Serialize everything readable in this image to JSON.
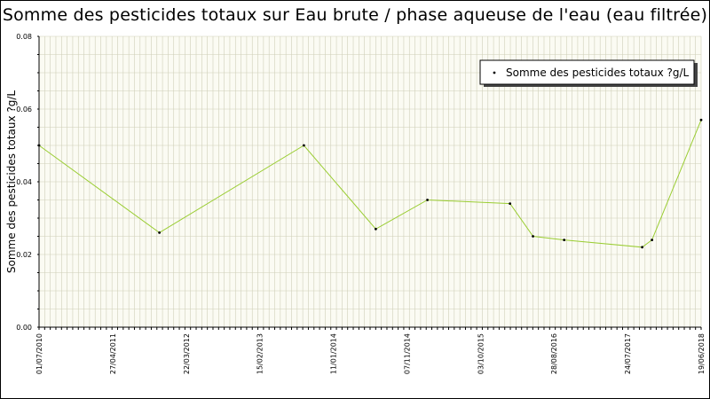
{
  "chart_data": {
    "type": "line",
    "title": "Somme des pesticides totaux sur Eau brute / phase aqueuse de l'eau (eau filtrée)",
    "xlabel": "",
    "ylabel": "Somme des pesticides totaux ?g/L",
    "ylim": [
      0,
      0.08
    ],
    "y_ticks": [
      "0.00",
      "0.02",
      "0.04",
      "0.06",
      "0.08"
    ],
    "x_ticks": [
      "01/07/2010",
      "27/04/2011",
      "22/03/2012",
      "15/02/2013",
      "11/01/2014",
      "07/11/2014",
      "03/10/2015",
      "28/08/2016",
      "24/07/2017",
      "19/06/2018"
    ],
    "x_range": [
      "01/07/2010",
      "19/06/2018"
    ],
    "grid": true,
    "legend_position": "top-right",
    "line_color": "#9acd32",
    "marker_color": "#000000",
    "series": [
      {
        "name": "Somme des pesticides totaux ?g/L",
        "x": [
          "01/07/2010",
          "12/12/2011",
          "07/09/2013",
          "20/07/2014",
          "04/03/2015",
          "01/03/2016",
          "10/06/2016",
          "25/10/2016",
          "03/10/2017",
          "15/11/2017",
          "19/06/2018"
        ],
        "values": [
          0.05,
          0.026,
          0.05,
          0.027,
          0.035,
          0.034,
          0.025,
          0.024,
          0.022,
          0.024,
          0.057
        ]
      }
    ]
  }
}
